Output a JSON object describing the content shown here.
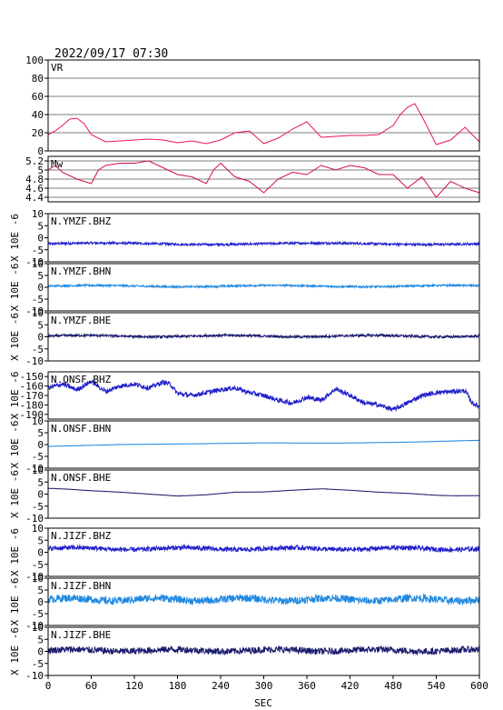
{
  "header": {
    "timestamp": "2022/09/17 07:30"
  },
  "xaxis": {
    "label": "SEC",
    "ticks": [
      0,
      60,
      120,
      180,
      240,
      300,
      360,
      420,
      480,
      540,
      600
    ],
    "range": [
      0,
      600
    ]
  },
  "colors": {
    "vr": "#e8174d",
    "mw": "#d01040",
    "bhz": "#1f1fcc",
    "bhn": "#1e88e0",
    "bhe": "#1a1a6e"
  },
  "chart_data": [
    {
      "type": "line",
      "id": "vr",
      "label": "VR",
      "ylim": [
        0,
        100
      ],
      "yticks": [
        0,
        20,
        40,
        60,
        80,
        100
      ],
      "grid": true,
      "x": [
        0,
        10,
        20,
        30,
        40,
        50,
        60,
        80,
        100,
        120,
        140,
        160,
        180,
        200,
        220,
        240,
        260,
        280,
        300,
        320,
        340,
        360,
        380,
        400,
        420,
        440,
        460,
        480,
        490,
        500,
        510,
        520,
        540,
        560,
        580,
        600
      ],
      "y": [
        18,
        22,
        28,
        35,
        36,
        30,
        18,
        10,
        11,
        12,
        13,
        12,
        9,
        11,
        8,
        12,
        20,
        22,
        8,
        14,
        24,
        32,
        15,
        16,
        17,
        17,
        18,
        28,
        40,
        48,
        52,
        38,
        7,
        12,
        26,
        10
      ]
    },
    {
      "type": "line",
      "id": "mw",
      "label": "Mw",
      "ylim": [
        4.3,
        5.3
      ],
      "yticks": [
        4.4,
        4.6,
        4.8,
        5.0,
        5.2
      ],
      "grid": true,
      "x": [
        0,
        10,
        20,
        40,
        60,
        70,
        80,
        100,
        120,
        140,
        160,
        180,
        200,
        220,
        230,
        240,
        260,
        280,
        300,
        320,
        340,
        360,
        380,
        400,
        420,
        440,
        460,
        480,
        500,
        520,
        540,
        560,
        580,
        600
      ],
      "y": [
        5.0,
        5.1,
        4.95,
        4.8,
        4.7,
        5.0,
        5.1,
        5.15,
        5.15,
        5.2,
        5.05,
        4.9,
        4.85,
        4.7,
        5.0,
        5.15,
        4.85,
        4.75,
        4.5,
        4.8,
        4.95,
        4.9,
        5.1,
        5.0,
        5.1,
        5.05,
        4.9,
        4.9,
        4.6,
        4.85,
        4.4,
        4.75,
        4.6,
        4.5
      ]
    },
    {
      "type": "line",
      "id": "ymzf-bhz",
      "label": "N.YMZF.BHZ",
      "unit": "X 10E -6",
      "ylim": [
        -10,
        10
      ],
      "yticks": [
        -10,
        -5,
        0,
        5,
        10
      ],
      "grid": false,
      "series_color": "bhz",
      "mean": -2.5,
      "noise_amp": 0.5,
      "wave_amp": 0.3,
      "wave_period": 300
    },
    {
      "type": "line",
      "id": "ymzf-bhn",
      "label": "N.YMZF.BHN",
      "unit": "X 10E -6",
      "ylim": [
        -10,
        10
      ],
      "yticks": [
        -10,
        -5,
        0,
        5,
        10
      ],
      "grid": false,
      "series_color": "bhn",
      "mean": 0.5,
      "noise_amp": 0.4,
      "wave_amp": 0.3,
      "wave_period": 250
    },
    {
      "type": "line",
      "id": "ymzf-bhe",
      "label": "N.YMZF.BHE",
      "unit": "X 10E -6",
      "ylim": [
        -10,
        10
      ],
      "yticks": [
        -10,
        -5,
        0,
        5,
        10
      ],
      "grid": false,
      "series_color": "bhe",
      "mean": 0.3,
      "noise_amp": 0.5,
      "wave_amp": 0.3,
      "wave_period": 200
    },
    {
      "type": "line",
      "id": "onsf-bhz",
      "label": "N.ONSF.BHZ",
      "unit": "X 10E -6",
      "ylim": [
        -195,
        -145
      ],
      "yticks": [
        -190,
        -180,
        -170,
        -160,
        -150
      ],
      "grid": false,
      "series_color": "bhz",
      "noise_amp": 2.5,
      "x": [
        0,
        20,
        40,
        60,
        80,
        100,
        120,
        140,
        160,
        170,
        180,
        200,
        220,
        240,
        260,
        280,
        300,
        320,
        340,
        360,
        380,
        400,
        420,
        440,
        460,
        480,
        500,
        520,
        540,
        560,
        580,
        590,
        600
      ],
      "y": [
        -162,
        -158,
        -164,
        -155,
        -166,
        -160,
        -158,
        -162,
        -156,
        -158,
        -168,
        -170,
        -167,
        -164,
        -162,
        -167,
        -170,
        -175,
        -178,
        -172,
        -175,
        -163,
        -170,
        -178,
        -180,
        -185,
        -178,
        -170,
        -167,
        -166,
        -165,
        -178,
        -182
      ]
    },
    {
      "type": "line",
      "id": "onsf-bhn",
      "label": "N.ONSF.BHN",
      "unit": "X 10E -6",
      "ylim": [
        -10,
        10
      ],
      "yticks": [
        -10,
        -5,
        0,
        5,
        10
      ],
      "grid": false,
      "series_color": "bhn",
      "noise_amp": 0.05,
      "x": [
        0,
        100,
        200,
        300,
        400,
        500,
        600
      ],
      "y": [
        -0.8,
        0.0,
        0.3,
        0.7,
        0.6,
        1.0,
        1.8
      ]
    },
    {
      "type": "line",
      "id": "onsf-bhe",
      "label": "N.ONSF.BHE",
      "unit": "X 10E -6",
      "ylim": [
        -10,
        10
      ],
      "yticks": [
        -10,
        -5,
        0,
        5,
        10
      ],
      "grid": false,
      "series_color": "bhe",
      "noise_amp": 0.05,
      "x": [
        0,
        30,
        60,
        100,
        140,
        180,
        220,
        260,
        300,
        340,
        380,
        420,
        460,
        500,
        540,
        570,
        600
      ],
      "y": [
        2.4,
        2.0,
        1.4,
        0.8,
        0.0,
        -0.8,
        -0.3,
        0.8,
        0.9,
        1.6,
        2.2,
        1.6,
        0.8,
        0.3,
        -0.5,
        -0.7,
        -0.6
      ]
    },
    {
      "type": "line",
      "id": "jizf-bhz",
      "label": "N.JIZF.BHZ",
      "unit": "X 10E -6",
      "ylim": [
        -10,
        10
      ],
      "yticks": [
        -10,
        -5,
        0,
        5,
        10
      ],
      "grid": false,
      "series_color": "bhz",
      "mean": 1.5,
      "noise_amp": 1.0,
      "wave_amp": 0.4,
      "wave_period": 150
    },
    {
      "type": "line",
      "id": "jizf-bhn",
      "label": "N.JIZF.BHN",
      "unit": "X 10E -6",
      "ylim": [
        -10,
        10
      ],
      "yticks": [
        -10,
        -5,
        0,
        5,
        10
      ],
      "grid": false,
      "series_color": "bhn",
      "mean": 1.0,
      "noise_amp": 1.6,
      "wave_amp": 0.6,
      "wave_period": 120
    },
    {
      "type": "line",
      "id": "jizf-bhe",
      "label": "N.JIZF.BHE",
      "unit": "X 10E -6",
      "ylim": [
        -10,
        10
      ],
      "yticks": [
        -10,
        -5,
        0,
        5,
        10
      ],
      "grid": false,
      "series_color": "bhe",
      "mean": 0.4,
      "noise_amp": 1.4,
      "wave_amp": 0.4,
      "wave_period": 140
    }
  ]
}
